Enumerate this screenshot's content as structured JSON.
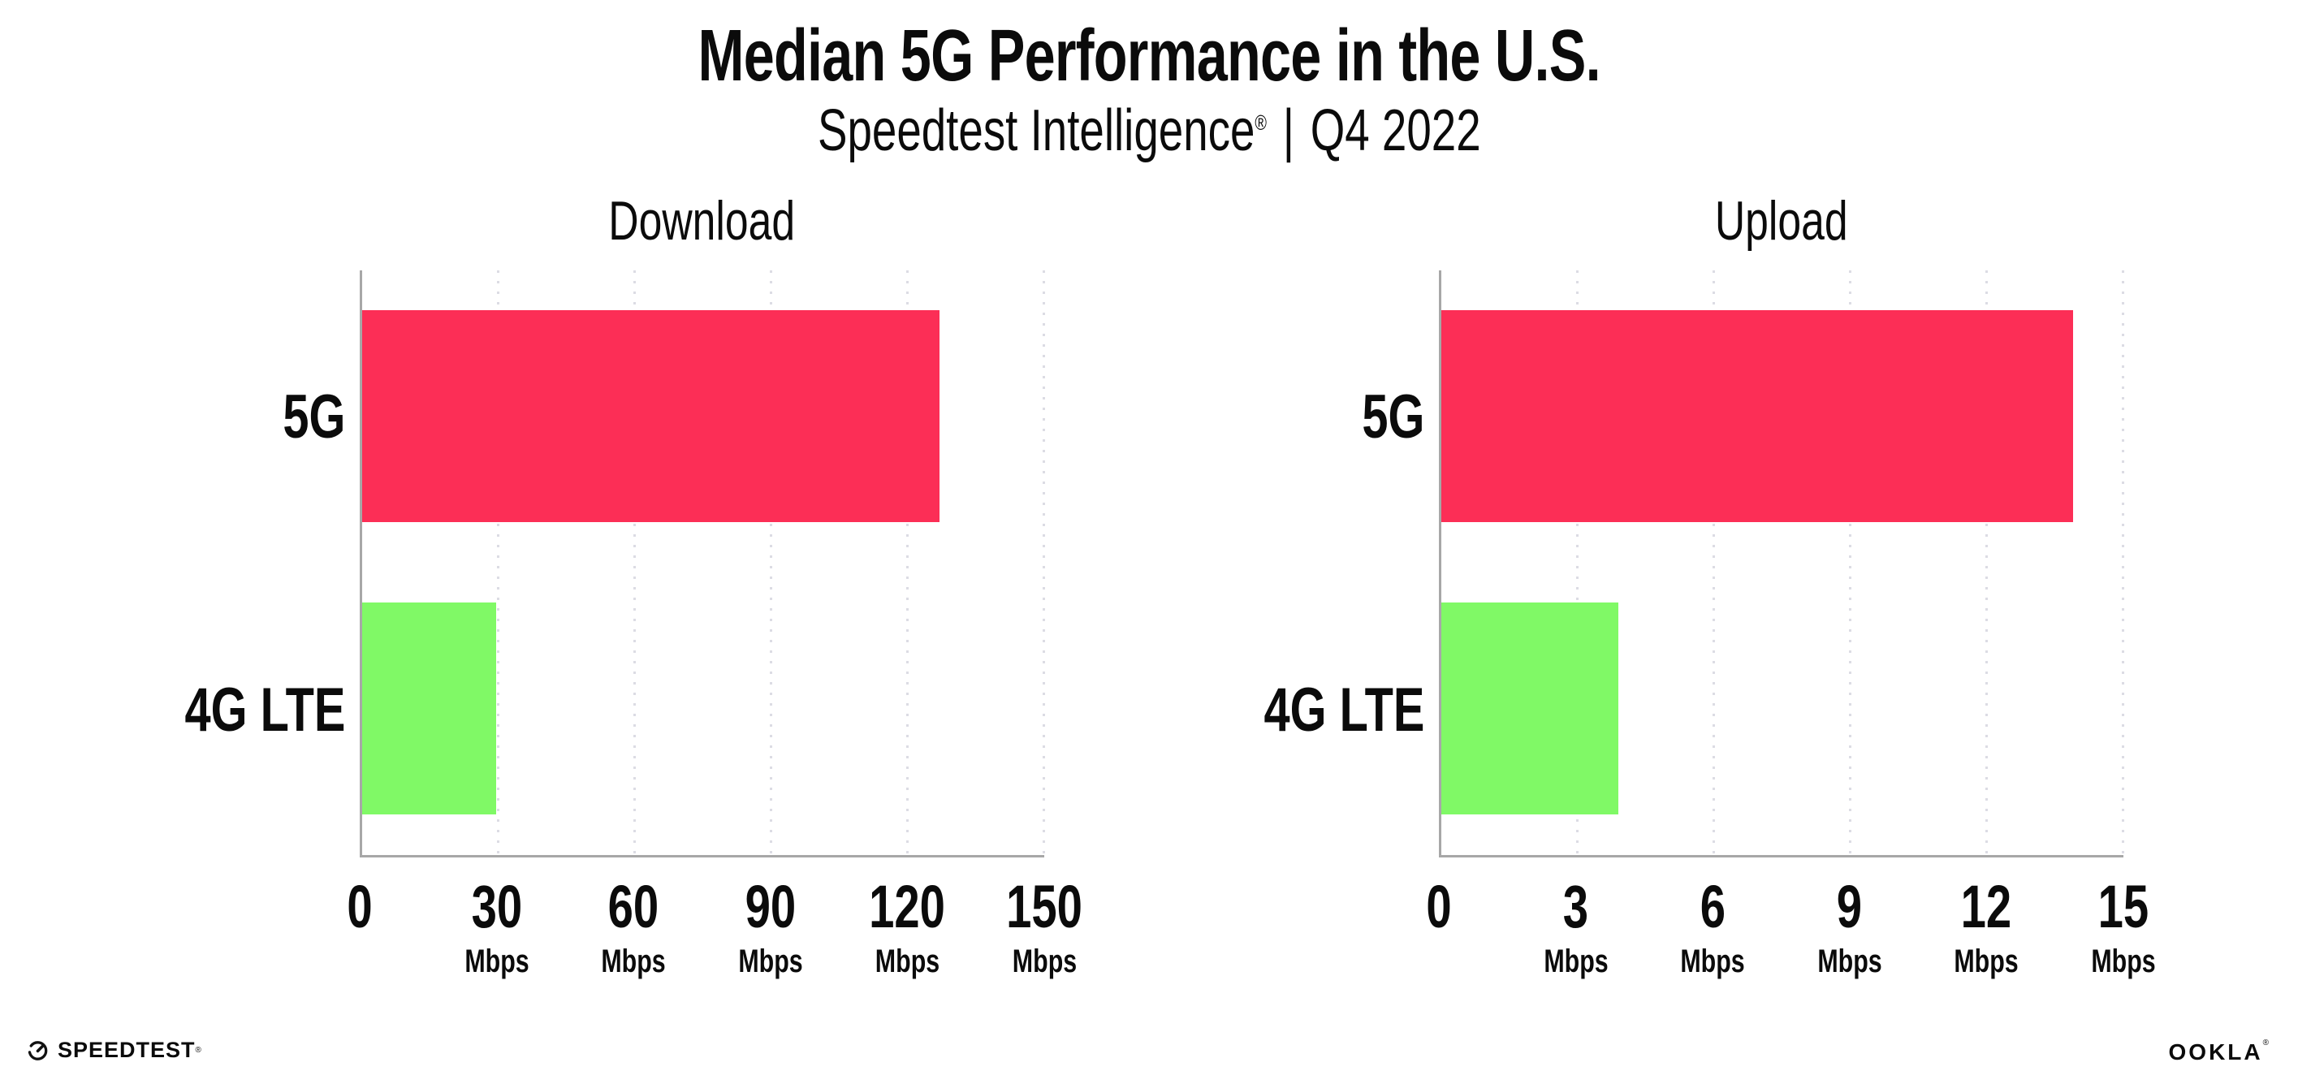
{
  "header": {
    "title": "Median 5G Performance in the U.S.",
    "subtitle": {
      "brand": "Speedtest Intelligence",
      "reg": "®",
      "separator": "|",
      "period": "Q4 2022"
    }
  },
  "chart_data": [
    {
      "type": "bar",
      "orientation": "horizontal",
      "title": "Download",
      "categories": [
        "5G",
        "4G LTE"
      ],
      "values": [
        127,
        29.5
      ],
      "unit": "Mbps",
      "xlim": [
        0,
        150
      ],
      "ticks": [
        0,
        30,
        60,
        90,
        120,
        150
      ],
      "bar_colors": [
        "#FC2E56",
        "#80F966"
      ],
      "grid": "vertical-dotted",
      "legend": "none"
    },
    {
      "type": "bar",
      "orientation": "horizontal",
      "title": "Upload",
      "categories": [
        "5G",
        "4G LTE"
      ],
      "values": [
        13.9,
        3.9
      ],
      "unit": "Mbps",
      "xlim": [
        0,
        15
      ],
      "ticks": [
        0,
        3,
        6,
        9,
        12,
        15
      ],
      "bar_colors": [
        "#FC2E56",
        "#80F966"
      ],
      "grid": "vertical-dotted",
      "legend": "none"
    }
  ],
  "colors": {
    "bar_5g": "#FC2E56",
    "bar_4g_lte": "#80F966",
    "axis": "#A7A7A7",
    "gridline": "#DCDCE4",
    "text": "#0B0B0B",
    "background": "#FFFFFF"
  },
  "footer": {
    "speedtest": "SPEEDTEST",
    "speedtest_reg": "®",
    "ookla": "OOKLA",
    "ookla_reg": "®"
  }
}
